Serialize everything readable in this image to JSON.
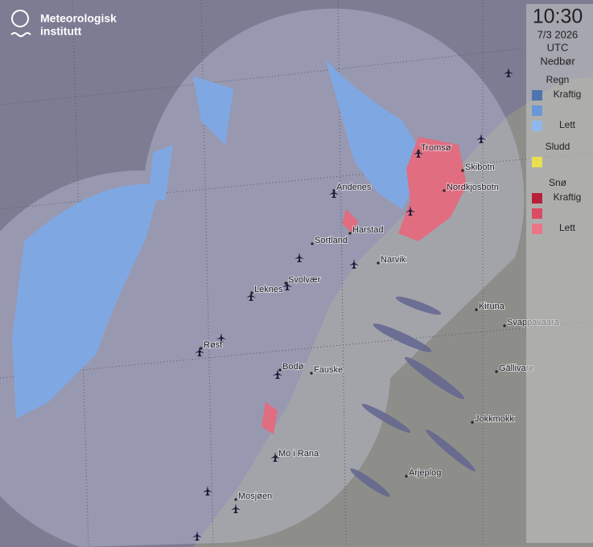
{
  "logo": {
    "line1": "Meteorologisk",
    "line2": "institutt"
  },
  "legend": {
    "time": "10:30",
    "date": "7/3 2026",
    "timezone": "UTC",
    "title": "Nedbør",
    "groups": [
      {
        "name": "Regn",
        "items": [
          {
            "label": "Kraftig",
            "color": "#4f75ad"
          },
          {
            "color": "#6b97d6"
          },
          {
            "label": "Lett",
            "color": "#8fb8ee"
          }
        ]
      },
      {
        "name": "Sludd",
        "items": [
          {
            "color": "#e8e050"
          }
        ]
      },
      {
        "name": "Snø",
        "items": [
          {
            "label": "Kraftig",
            "color": "#b8203a"
          },
          {
            "color": "#d94c63"
          },
          {
            "label": "Lett",
            "color": "#ea7586"
          }
        ]
      }
    ]
  },
  "places": [
    "Tromsø",
    "Skibotn",
    "Nordkjosbotn",
    "Andenes",
    "Harstad",
    "Sortland",
    "Narvik",
    "Svolvær",
    "Leknes",
    "Kiruna",
    "Svappavaara",
    "Røst",
    "Gällivare",
    "Bodø",
    "Fauske",
    "Jokkmokk",
    "Mo i Rana",
    "Arjeplog",
    "Mosjøen"
  ]
}
